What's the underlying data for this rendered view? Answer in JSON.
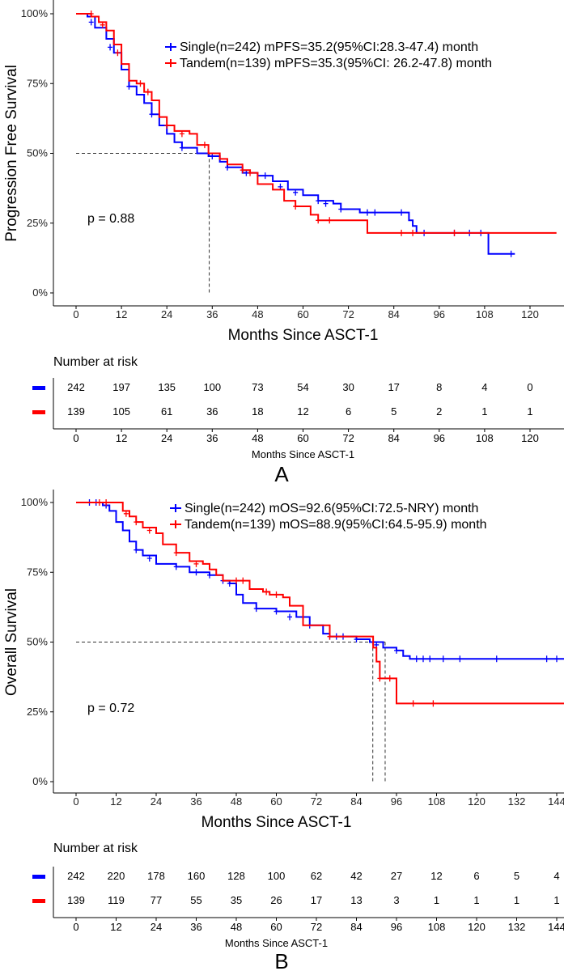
{
  "chart_data": [
    {
      "type": "line",
      "panel_label": "A",
      "ylabel": "Progression Free Survival",
      "xlabel": "Months Since ASCT-1",
      "xlim": [
        0,
        127
      ],
      "ylim": [
        0,
        100
      ],
      "xticks": [
        "0",
        "12",
        "24",
        "36",
        "48",
        "60",
        "72",
        "84",
        "96",
        "108",
        "120"
      ],
      "xtick_values": [
        0,
        12,
        24,
        36,
        48,
        60,
        72,
        84,
        96,
        108,
        120
      ],
      "yticks": [
        "0%",
        "25%",
        "50%",
        "75%",
        "100%"
      ],
      "ytick_values": [
        0,
        25,
        50,
        75,
        100
      ],
      "p_value": "p = 0.88",
      "legend_position": "top-right",
      "median_lines": [
        35.2
      ],
      "series": [
        {
          "name": "Single(n=242) mPFS=35.2(95%CI:28.3-47.4) month",
          "color": "#0000ff",
          "points": [
            [
              0,
              100
            ],
            [
              3,
              99
            ],
            [
              5,
              95
            ],
            [
              8,
              91
            ],
            [
              10,
              86
            ],
            [
              12,
              80
            ],
            [
              14,
              74
            ],
            [
              16,
              71
            ],
            [
              18,
              68
            ],
            [
              20,
              64
            ],
            [
              22,
              60
            ],
            [
              24,
              57
            ],
            [
              26,
              54
            ],
            [
              28,
              52
            ],
            [
              32,
              50
            ],
            [
              35,
              49
            ],
            [
              38,
              47
            ],
            [
              40,
              45
            ],
            [
              44,
              43
            ],
            [
              48,
              42
            ],
            [
              52,
              40
            ],
            [
              56,
              37
            ],
            [
              60,
              35
            ],
            [
              64,
              33
            ],
            [
              68,
              32
            ],
            [
              70,
              30
            ],
            [
              75,
              28.8
            ],
            [
              87,
              28.8
            ],
            [
              88,
              26
            ],
            [
              89,
              24
            ],
            [
              90,
              21.5
            ],
            [
              109,
              21.5
            ],
            [
              109,
              14
            ],
            [
              116,
              14
            ]
          ],
          "censored": [
            [
              4,
              97
            ],
            [
              9,
              88
            ],
            [
              14,
              74
            ],
            [
              20,
              64
            ],
            [
              28,
              52
            ],
            [
              36,
              49
            ],
            [
              40,
              45
            ],
            [
              45,
              43
            ],
            [
              50,
              42
            ],
            [
              54,
              38
            ],
            [
              58,
              36
            ],
            [
              64,
              33
            ],
            [
              66,
              32
            ],
            [
              70,
              30
            ],
            [
              77,
              28.8
            ],
            [
              79,
              28.8
            ],
            [
              86,
              28.8
            ],
            [
              92,
              21.5
            ],
            [
              100,
              21.5
            ],
            [
              104,
              21.5
            ],
            [
              107,
              21.5
            ],
            [
              115,
              14
            ]
          ]
        },
        {
          "name": "Tandem(n=139) mPFS=35.3(95%CI: 26.2-47.8) month",
          "color": "#ff0000",
          "points": [
            [
              0,
              100
            ],
            [
              4,
              99
            ],
            [
              6,
              97
            ],
            [
              8,
              94
            ],
            [
              10,
              89
            ],
            [
              12,
              82
            ],
            [
              14,
              76
            ],
            [
              16,
              75
            ],
            [
              18,
              72
            ],
            [
              20,
              69
            ],
            [
              22,
              63
            ],
            [
              24,
              60
            ],
            [
              26,
              58
            ],
            [
              30,
              57
            ],
            [
              32,
              53
            ],
            [
              35,
              50
            ],
            [
              38,
              48
            ],
            [
              40,
              46
            ],
            [
              44,
              44
            ],
            [
              46,
              43
            ],
            [
              48,
              39
            ],
            [
              52,
              37
            ],
            [
              55,
              33
            ],
            [
              58,
              31
            ],
            [
              62,
              28
            ],
            [
              64,
              26
            ],
            [
              76,
              26
            ],
            [
              77,
              21.5
            ],
            [
              127,
              21.5
            ]
          ],
          "censored": [
            [
              4,
              100
            ],
            [
              7,
              96
            ],
            [
              11,
              86
            ],
            [
              17,
              75
            ],
            [
              19,
              72
            ],
            [
              24,
              60
            ],
            [
              28,
              57
            ],
            [
              34,
              53
            ],
            [
              44,
              44
            ],
            [
              46,
              43
            ],
            [
              58,
              31
            ],
            [
              64,
              26
            ],
            [
              67,
              26
            ],
            [
              86,
              21.5
            ],
            [
              89,
              21.5
            ],
            [
              100,
              21.5
            ]
          ]
        }
      ],
      "risk_table": {
        "title": "Number at risk",
        "xlabel": "Months Since ASCT-1",
        "rows": [
          {
            "color": "#0000ff",
            "values": [
              "242",
              "197",
              "135",
              "100",
              "73",
              "54",
              "30",
              "17",
              "8",
              "4",
              "0"
            ]
          },
          {
            "color": "#ff0000",
            "values": [
              "139",
              "105",
              "61",
              "36",
              "18",
              "12",
              "6",
              "5",
              "2",
              "1",
              "1"
            ]
          }
        ]
      }
    },
    {
      "type": "line",
      "panel_label": "B",
      "ylabel": "Overall Survival",
      "xlabel": "Months Since ASCT-1",
      "xlim": [
        0,
        150
      ],
      "ylim": [
        0,
        100
      ],
      "xticks": [
        "0",
        "12",
        "24",
        "36",
        "48",
        "60",
        "72",
        "84",
        "96",
        "108",
        "120",
        "132",
        "144"
      ],
      "xtick_values": [
        0,
        12,
        24,
        36,
        48,
        60,
        72,
        84,
        96,
        108,
        120,
        132,
        144
      ],
      "yticks": [
        "0%",
        "25%",
        "50%",
        "75%",
        "100%"
      ],
      "ytick_values": [
        0,
        25,
        50,
        75,
        100
      ],
      "p_value": "p = 0.72",
      "legend_position": "top-right",
      "median_lines": [
        88.9,
        92.6
      ],
      "series": [
        {
          "name": "Single(n=242) mOS=92.6(95%CI:72.5-NRY) month",
          "color": "#0000ff",
          "points": [
            [
              0,
              100
            ],
            [
              8,
              99
            ],
            [
              10,
              97
            ],
            [
              12,
              93
            ],
            [
              14,
              90
            ],
            [
              16,
              86
            ],
            [
              18,
              83
            ],
            [
              20,
              81
            ],
            [
              24,
              78
            ],
            [
              30,
              77
            ],
            [
              34,
              75
            ],
            [
              36,
              75
            ],
            [
              40,
              74
            ],
            [
              44,
              72
            ],
            [
              46,
              71
            ],
            [
              48,
              67
            ],
            [
              50,
              64
            ],
            [
              54,
              62
            ],
            [
              60,
              61
            ],
            [
              66,
              59
            ],
            [
              70,
              56
            ],
            [
              74,
              53
            ],
            [
              76,
              52
            ],
            [
              84,
              51
            ],
            [
              88,
              50
            ],
            [
              92,
              48
            ],
            [
              96,
              47
            ],
            [
              98,
              45
            ],
            [
              100,
              44
            ],
            [
              150,
              44
            ]
          ],
          "censored": [
            [
              4,
              100
            ],
            [
              6,
              100
            ],
            [
              9,
              99
            ],
            [
              18,
              83
            ],
            [
              22,
              80
            ],
            [
              30,
              77
            ],
            [
              36,
              75
            ],
            [
              40,
              74
            ],
            [
              44,
              72
            ],
            [
              46,
              71
            ],
            [
              54,
              62
            ],
            [
              60,
              61
            ],
            [
              64,
              59
            ],
            [
              70,
              56
            ],
            [
              76,
              52
            ],
            [
              78,
              52
            ],
            [
              80,
              52
            ],
            [
              84,
              51
            ],
            [
              90,
              49
            ],
            [
              96,
              47
            ],
            [
              102,
              44
            ],
            [
              104,
              44
            ],
            [
              106,
              44
            ],
            [
              110,
              44
            ],
            [
              115,
              44
            ],
            [
              126,
              44
            ],
            [
              141,
              44
            ],
            [
              144,
              44
            ]
          ]
        },
        {
          "name": "Tandem(n=139) mOS=88.9(95%CI:64.5-95.9) month",
          "color": "#ff0000",
          "points": [
            [
              0,
              100
            ],
            [
              12,
              100
            ],
            [
              14,
              97
            ],
            [
              16,
              95
            ],
            [
              18,
              93
            ],
            [
              20,
              91
            ],
            [
              24,
              89
            ],
            [
              26,
              85
            ],
            [
              30,
              82
            ],
            [
              34,
              79
            ],
            [
              38,
              78
            ],
            [
              40,
              76
            ],
            [
              42,
              74
            ],
            [
              44,
              72
            ],
            [
              52,
              72
            ],
            [
              52,
              69
            ],
            [
              56,
              68
            ],
            [
              58,
              67
            ],
            [
              62,
              66
            ],
            [
              64,
              63
            ],
            [
              68,
              61
            ],
            [
              68,
              56
            ],
            [
              76,
              56
            ],
            [
              76,
              52
            ],
            [
              88,
              52
            ],
            [
              89,
              48
            ],
            [
              90,
              43
            ],
            [
              91,
              37
            ],
            [
              96,
              37
            ],
            [
              96,
              28
            ],
            [
              150,
              28
            ]
          ],
          "censored": [
            [
              7,
              100
            ],
            [
              9,
              100
            ],
            [
              15,
              96
            ],
            [
              18,
              93
            ],
            [
              22,
              90
            ],
            [
              30,
              82
            ],
            [
              36,
              78
            ],
            [
              48,
              72
            ],
            [
              50,
              72
            ],
            [
              57,
              68
            ],
            [
              60,
              67
            ],
            [
              76,
              52
            ],
            [
              91,
              37
            ],
            [
              94,
              37
            ],
            [
              101,
              28
            ],
            [
              107,
              28
            ]
          ]
        }
      ],
      "risk_table": {
        "title": "Number at risk",
        "xlabel": "Months Since ASCT-1",
        "rows": [
          {
            "color": "#0000ff",
            "values": [
              "242",
              "220",
              "178",
              "160",
              "128",
              "100",
              "62",
              "42",
              "27",
              "12",
              "6",
              "5",
              "4"
            ]
          },
          {
            "color": "#ff0000",
            "values": [
              "139",
              "119",
              "77",
              "55",
              "35",
              "26",
              "17",
              "13",
              "3",
              "1",
              "1",
              "1",
              "1"
            ]
          }
        ]
      }
    }
  ]
}
